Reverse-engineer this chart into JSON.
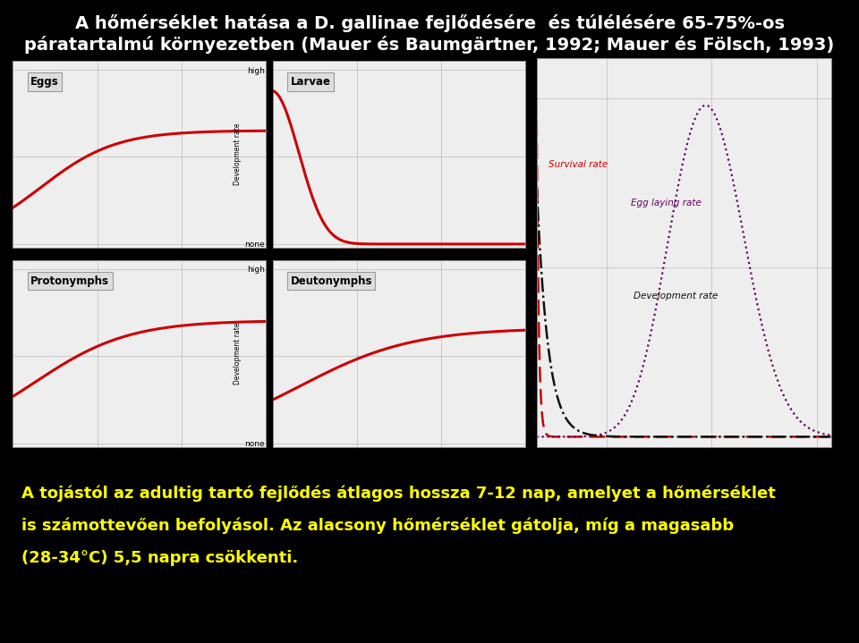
{
  "bg_color": "#000000",
  "chart_bg": "#e8e8e8",
  "panel_bg": "#eeeeee",
  "title_color": "#ffffff",
  "title_fontsize": 14,
  "body_color_yellow": "#ffff00",
  "body_fontsize": 13,
  "curve_red": "#cc0000",
  "curve_purple": "#660066",
  "curve_black": "#111111",
  "panel_labels": [
    "Eggs",
    "Larvae",
    "Protonymphs",
    "Deutonymphs"
  ]
}
